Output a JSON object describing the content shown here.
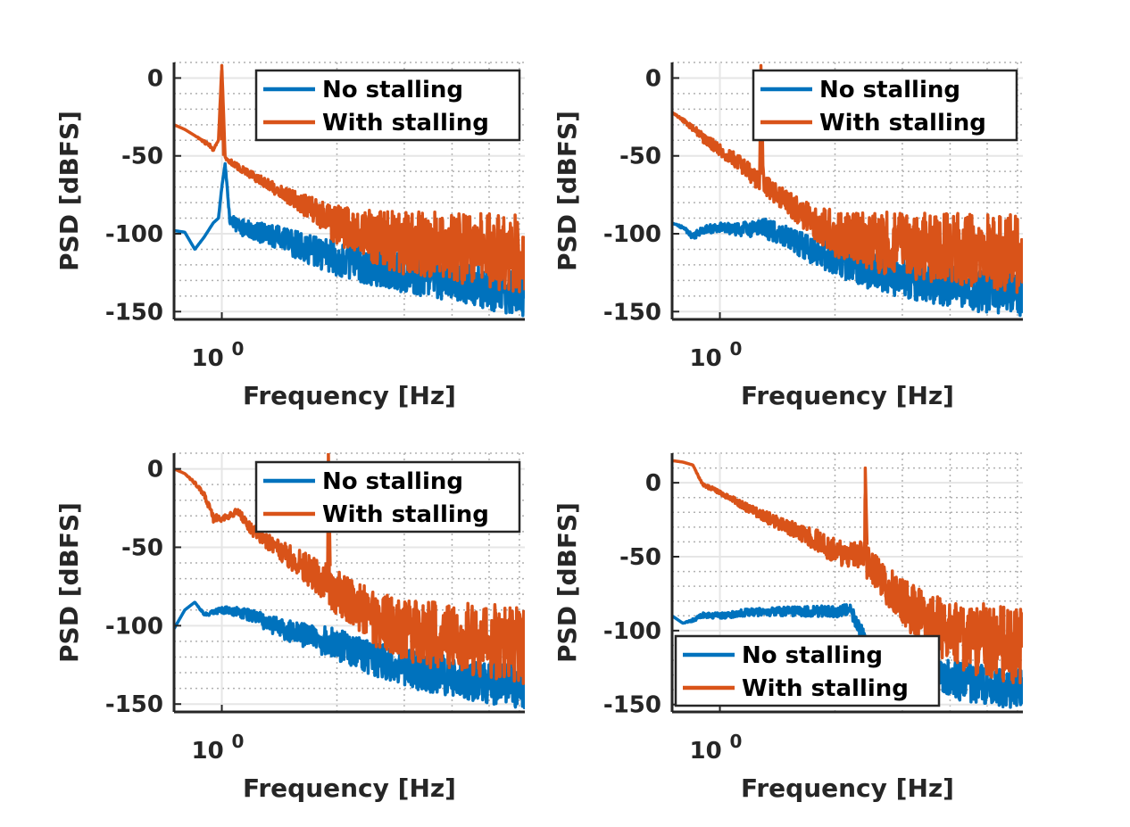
{
  "colors": {
    "no_stalling": "#0072BD",
    "with_stalling": "#D95319",
    "axis": "#262626",
    "grid": "#e6e6e6",
    "minor_grid": "#b0b0b0"
  },
  "chart_data": [
    {
      "type": "line",
      "xlabel": "Frequency [Hz]",
      "ylabel": "PSD [dBFS]",
      "xscale": "log",
      "x_tick_labels": [
        "10"
      ],
      "x_tick_exponent": "0",
      "y_ticks": [
        0,
        -50,
        -100,
        -150
      ],
      "y_tick_labels": [
        "0",
        "-50",
        "-100",
        "-150"
      ],
      "ylim": [
        -155,
        10
      ],
      "grid": true,
      "legend_position": "top-right",
      "series": [
        {
          "name": "No stalling",
          "color": "#0072BD",
          "x": [
            0.75,
            0.8,
            0.85,
            0.9,
            0.95,
            0.98,
            1.0,
            1.02,
            1.05,
            1.1,
            1.2,
            1.4,
            1.7,
            2.0,
            2.5,
            3.0,
            4.0,
            5.0,
            6.0
          ],
          "y": [
            -98,
            -99,
            -110,
            -102,
            -93,
            -90,
            -70,
            -55,
            -88,
            -90,
            -92,
            -95,
            -100,
            -105,
            -110,
            -113,
            -118,
            -122,
            -125
          ],
          "noise": [
            0,
            0,
            0,
            0,
            0,
            0,
            0,
            0,
            6,
            10,
            12,
            15,
            20,
            22,
            24,
            25,
            26,
            27,
            28
          ]
        },
        {
          "name": "With stalling",
          "color": "#D95319",
          "x": [
            0.75,
            0.8,
            0.85,
            0.9,
            0.95,
            0.98,
            1.0,
            1.02,
            1.05,
            1.1,
            1.2,
            1.4,
            1.7,
            2.0,
            2.5,
            3.0,
            4.0,
            5.0,
            6.0
          ],
          "y": [
            -30,
            -33,
            -37,
            -40,
            -44,
            -40,
            8,
            -50,
            -52,
            -55,
            -60,
            -68,
            -76,
            -82,
            -85,
            -86,
            -86,
            -87,
            -88
          ],
          "noise": [
            0,
            0,
            0,
            2,
            3,
            0,
            0,
            2,
            3,
            4,
            5,
            8,
            15,
            25,
            35,
            40,
            45,
            48,
            50
          ]
        }
      ]
    },
    {
      "type": "line",
      "xlabel": "Frequency [Hz]",
      "ylabel": "PSD [dBFS]",
      "xscale": "log",
      "x_tick_labels": [
        "10"
      ],
      "x_tick_exponent": "0",
      "y_ticks": [
        0,
        -50,
        -100,
        -150
      ],
      "y_tick_labels": [
        "0",
        "-50",
        "-100",
        "-150"
      ],
      "ylim": [
        -155,
        10
      ],
      "grid": true,
      "legend_position": "top-right",
      "series": [
        {
          "name": "No stalling",
          "color": "#0072BD",
          "x": [
            0.75,
            0.8,
            0.85,
            0.9,
            1.0,
            1.1,
            1.2,
            1.3,
            1.5,
            1.7,
            2.0,
            2.5,
            3.0,
            4.0,
            5.0,
            6.0
          ],
          "y": [
            -93,
            -95,
            -100,
            -95,
            -93,
            -93,
            -92,
            -90,
            -95,
            -100,
            -105,
            -112,
            -115,
            -120,
            -123,
            -125
          ],
          "noise": [
            0,
            2,
            4,
            5,
            6,
            8,
            10,
            12,
            15,
            18,
            22,
            24,
            26,
            27,
            28,
            28
          ]
        },
        {
          "name": "With stalling",
          "color": "#D95319",
          "x": [
            0.75,
            0.8,
            0.85,
            0.9,
            1.0,
            1.1,
            1.2,
            1.27,
            1.28,
            1.3,
            1.5,
            1.7,
            2.0,
            2.5,
            3.0,
            4.0,
            5.0,
            6.0
          ],
          "y": [
            -22,
            -26,
            -30,
            -35,
            -42,
            -48,
            -55,
            -62,
            8,
            -62,
            -72,
            -80,
            -85,
            -86,
            -86,
            -87,
            -87,
            -88
          ],
          "noise": [
            0,
            2,
            4,
            6,
            8,
            10,
            12,
            12,
            0,
            12,
            15,
            20,
            30,
            38,
            42,
            46,
            48,
            50
          ]
        }
      ]
    },
    {
      "type": "line",
      "xlabel": "Frequency [Hz]",
      "ylabel": "PSD [dBFS]",
      "xscale": "log",
      "x_tick_labels": [
        "10"
      ],
      "x_tick_exponent": "0",
      "y_ticks": [
        0,
        -50,
        -100,
        -150
      ],
      "y_tick_labels": [
        "0",
        "-50",
        "-100",
        "-150"
      ],
      "ylim": [
        -155,
        10
      ],
      "grid": true,
      "legend_position": "top-right",
      "series": [
        {
          "name": "No stalling",
          "color": "#0072BD",
          "x": [
            0.75,
            0.8,
            0.85,
            0.9,
            1.0,
            1.1,
            1.2,
            1.4,
            1.6,
            1.8,
            2.0,
            2.5,
            3.0,
            4.0,
            5.0,
            6.0
          ],
          "y": [
            -102,
            -90,
            -85,
            -92,
            -88,
            -88,
            -90,
            -95,
            -98,
            -100,
            -102,
            -110,
            -115,
            -120,
            -123,
            -125
          ],
          "noise": [
            0,
            0,
            0,
            2,
            4,
            6,
            8,
            12,
            15,
            18,
            20,
            22,
            24,
            26,
            27,
            28
          ]
        },
        {
          "name": "With stalling",
          "color": "#D95319",
          "x": [
            0.75,
            0.8,
            0.85,
            0.9,
            0.95,
            1.0,
            1.1,
            1.2,
            1.4,
            1.6,
            1.89,
            1.9,
            1.91,
            2.2,
            2.5,
            3.0,
            4.0,
            5.0,
            6.0
          ],
          "y": [
            0,
            -3,
            -8,
            -15,
            -28,
            -30,
            -25,
            -35,
            -45,
            -52,
            -60,
            10,
            -62,
            -70,
            -78,
            -83,
            -85,
            -86,
            -87
          ],
          "noise": [
            0,
            0,
            2,
            3,
            6,
            4,
            4,
            8,
            12,
            18,
            25,
            0,
            28,
            30,
            35,
            40,
            45,
            48,
            50
          ]
        }
      ]
    },
    {
      "type": "line",
      "xlabel": "Frequency [Hz]",
      "ylabel": "PSD [dBFS]",
      "xscale": "log",
      "x_tick_labels": [
        "10"
      ],
      "x_tick_exponent": "0",
      "y_ticks": [
        0,
        -50,
        -100,
        -150
      ],
      "y_tick_labels": [
        "0",
        "-50",
        "-100",
        "-150"
      ],
      "ylim": [
        -155,
        20
      ],
      "grid": true,
      "legend_position": "bottom-right",
      "series": [
        {
          "name": "No stalling",
          "color": "#0072BD",
          "x": [
            0.75,
            0.8,
            0.85,
            0.9,
            1.0,
            1.2,
            1.5,
            2.0,
            2.2,
            2.5,
            3.0,
            4.0,
            5.0,
            6.0
          ],
          "y": [
            -90,
            -95,
            -92,
            -88,
            -88,
            -85,
            -84,
            -83,
            -82,
            -110,
            -115,
            -120,
            -123,
            -125
          ],
          "noise": [
            0,
            0,
            2,
            3,
            4,
            5,
            6,
            8,
            8,
            20,
            24,
            26,
            27,
            28
          ]
        },
        {
          "name": "With stalling",
          "color": "#D95319",
          "x": [
            0.75,
            0.8,
            0.85,
            0.9,
            1.0,
            1.2,
            1.5,
            1.8,
            2.0,
            2.39,
            2.4,
            2.41,
            2.7,
            3.0,
            3.5,
            4.0,
            5.0,
            6.0
          ],
          "y": [
            15,
            14,
            12,
            0,
            -5,
            -15,
            -25,
            -32,
            -38,
            -40,
            10,
            -42,
            -55,
            -65,
            -75,
            -80,
            -82,
            -85
          ],
          "noise": [
            0,
            0,
            0,
            2,
            3,
            6,
            10,
            14,
            18,
            20,
            0,
            22,
            26,
            30,
            40,
            45,
            50,
            52
          ]
        }
      ]
    }
  ]
}
